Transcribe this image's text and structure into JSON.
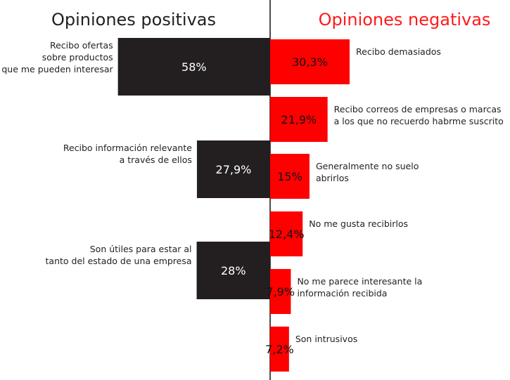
{
  "chart_data": [
    {
      "type": "bar",
      "orientation": "horizontal",
      "direction": "leftward",
      "title": "Opiniones positivas",
      "unit": "%",
      "color": "#231f20",
      "categories": [
        [
          "Recibo ofertas",
          "sobre productos",
          "que me pueden interesar"
        ],
        [
          "Recibo información relevante",
          "a través de ellos"
        ],
        [
          "Son útiles para estar al",
          "tanto del estado de una empresa"
        ]
      ],
      "values": [
        58,
        27.9,
        28
      ],
      "value_labels": [
        "58%",
        "27,9%",
        "28%"
      ],
      "xlim": [
        0,
        100
      ]
    },
    {
      "type": "bar",
      "orientation": "horizontal",
      "direction": "rightward",
      "title": "Opiniones negativas",
      "unit": "%",
      "color": "#ff0000",
      "categories": [
        [
          "Recibo demasiados"
        ],
        [
          "Recibo correos de empresas o marcas",
          "a los que no recuerdo habrme suscrito"
        ],
        [
          "Generalmente no suelo",
          "abrirlos"
        ],
        [
          "No me gusta recibirlos"
        ],
        [
          "No me parece interesante la",
          "información recibida"
        ],
        [
          "Son intrusivos"
        ]
      ],
      "values": [
        30.3,
        21.9,
        15,
        12.4,
        7.9,
        7.2
      ],
      "value_labels": [
        "30,3%",
        "21,9%",
        "15%",
        "12,4%",
        "7,9%",
        "7,2%"
      ],
      "xlim": [
        0,
        100
      ]
    }
  ],
  "colors": {
    "positive": "#231f20",
    "negative": "#ff0000",
    "divider": "#000000"
  }
}
